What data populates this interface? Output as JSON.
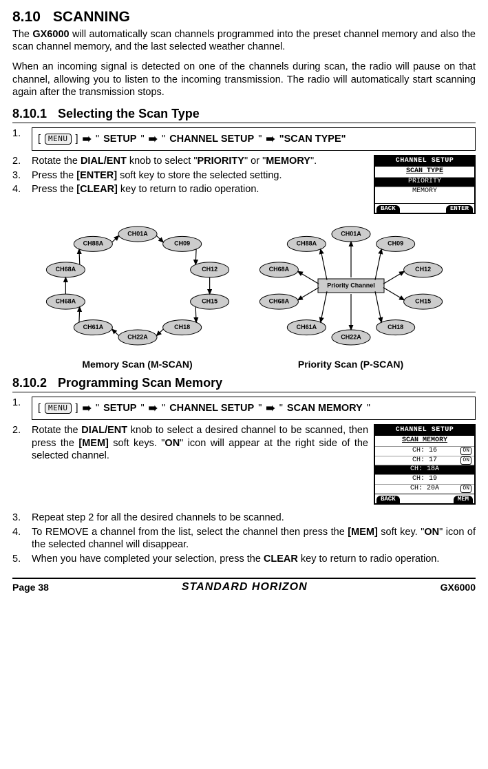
{
  "section": {
    "num": "8.10",
    "title": "SCANNING"
  },
  "intro1_a": "The ",
  "intro1_b": "GX6000",
  "intro1_c": " will automatically scan channels programmed into the preset channel memory and also the scan channel memory, and the last selected weather channel.",
  "intro2": "When an incoming signal is detected on one of the channels during scan, the radio will pause on that channel, allowing you to listen to the incoming transmission. The radio will automatically start scanning again after the transmission stops.",
  "sub1": {
    "num": "8.10.1",
    "title": "Selecting the Scan Type"
  },
  "menu_label": "MENU",
  "path1": {
    "a": "SETUP",
    "b": "CHANNEL SETUP",
    "c": "\"SCAN TYPE\""
  },
  "s1_step2_a": "Rotate the ",
  "s1_step2_b": "DIAL/ENT",
  "s1_step2_c": " knob to select \"",
  "s1_step2_d": "PRIORITY",
  "s1_step2_e": "\" or \"",
  "s1_step2_f": "MEMORY",
  "s1_step2_g": "\".",
  "s1_step3_a": "Press the ",
  "s1_step3_b": "[ENTER]",
  "s1_step3_c": " soft key to store the selected setting.",
  "s1_step4_a": "Press the ",
  "s1_step4_b": "[CLEAR]",
  "s1_step4_c": " key to return to radio operation.",
  "lcd1": {
    "hdr": "CHANNEL SETUP",
    "sub": "SCAN TYPE",
    "r1": "PRIORITY",
    "r2": "MEMORY",
    "back": "BACK",
    "enter": "ENTER"
  },
  "diag": {
    "nodes": [
      "CH01A",
      "CH09",
      "CH12",
      "CH15",
      "CH18",
      "CH22A",
      "CH61A",
      "CH68A",
      "CH68A",
      "CH88A"
    ],
    "center": "Priority Channel",
    "cap1": "Memory Scan (M-SCAN)",
    "cap2": "Priority Scan (P-SCAN)"
  },
  "sub2": {
    "num": "8.10.2",
    "title": "Programming Scan Memory"
  },
  "path2": {
    "a": "SETUP",
    "b": "CHANNEL SETUP",
    "c": "SCAN MEMORY"
  },
  "s2_step2_a": "Rotate the ",
  "s2_step2_b": "DIAL/ENT",
  "s2_step2_c": " knob to select a desired channel to be scanned, then press the ",
  "s2_step2_d": "[MEM]",
  "s2_step2_e": " soft keys. \"",
  "s2_step2_f": "ON",
  "s2_step2_g": "\" icon will appear at the right side of the selected channel.",
  "lcd2": {
    "hdr": "CHANNEL SETUP",
    "sub": "SCAN MEMORY",
    "rows": [
      {
        "t": "CH: 16",
        "on": true
      },
      {
        "t": "CH: 17",
        "on": true
      },
      {
        "t": "CH: 18A",
        "on": false
      },
      {
        "t": "CH: 19",
        "on": false
      },
      {
        "t": "CH: 20A",
        "on": true
      }
    ],
    "back": "BACK",
    "mem": "MEM"
  },
  "s2_step3": "Repeat step 2 for all the desired channels to be scanned.",
  "s2_step4_a": "To REMOVE a channel from the list, select the channel then press the ",
  "s2_step4_b": "[MEM]",
  "s2_step4_c": " soft key. \"",
  "s2_step4_d": "ON",
  "s2_step4_e": "\" icon of the selected channel will disappear.",
  "s2_step5_a": "When you have completed your selection, press the ",
  "s2_step5_b": "CLEAR",
  "s2_step5_c": " key to return to radio operation.",
  "footer": {
    "page": "Page 38",
    "brand": "STANDARD HORIZON",
    "model": "GX6000"
  }
}
